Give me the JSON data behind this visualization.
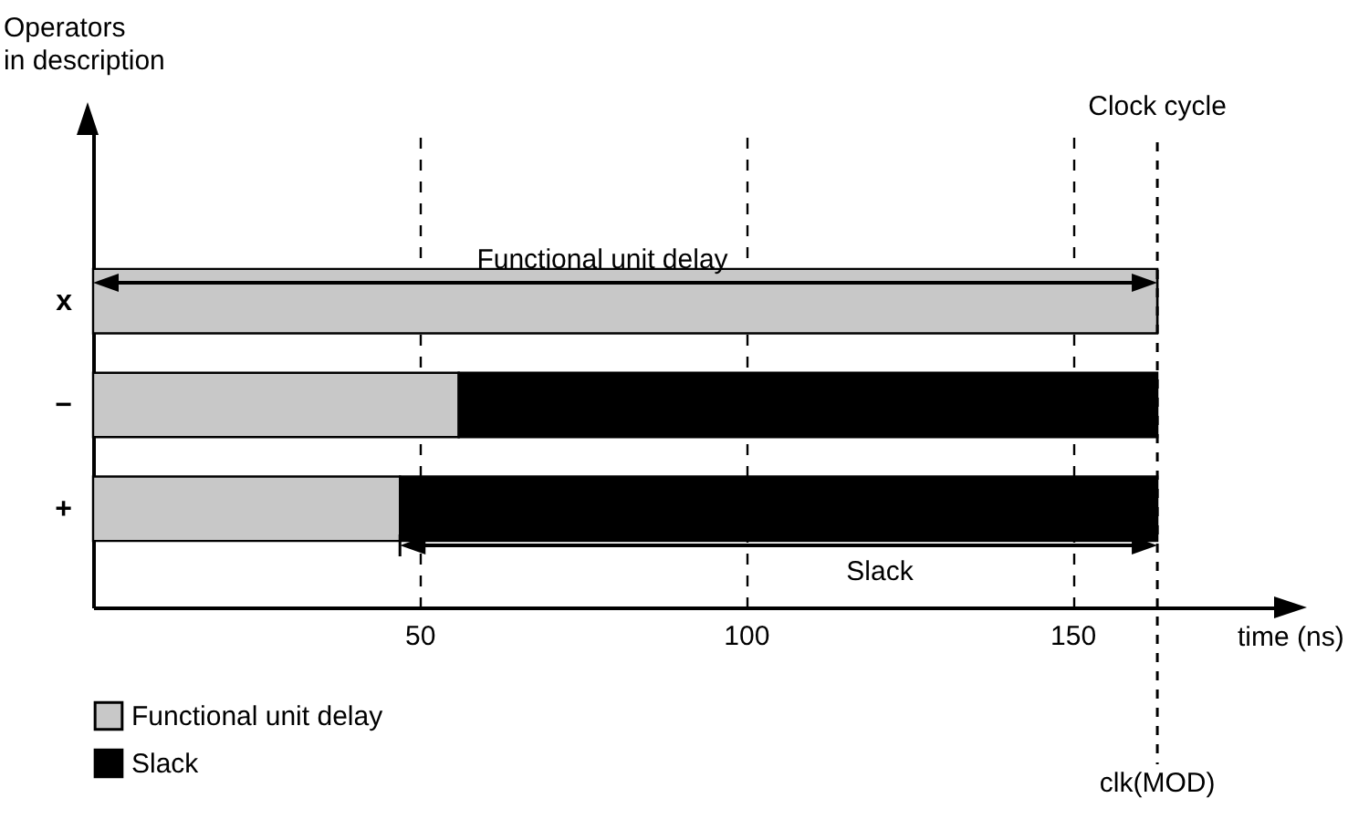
{
  "chart_data": {
    "type": "bar",
    "orientation": "horizontal",
    "stacked": true,
    "categories": [
      "x",
      "−",
      "+"
    ],
    "series": [
      {
        "name": "Functional unit delay",
        "color": "#c8c8c8",
        "values": [
          163,
          56,
          47
        ]
      },
      {
        "name": "Slack",
        "color": "#000000",
        "values": [
          0,
          107,
          116
        ]
      }
    ],
    "xlim": [
      0,
      182
    ],
    "xticks": [
      50,
      100,
      150
    ],
    "xlabel": "time (ns)",
    "grid": "x",
    "legend": "bottom",
    "ref_lines": [
      {
        "axis": "x",
        "value": 163,
        "label": "clk(MOD)",
        "line_style": "dashed",
        "color": "#000000"
      }
    ],
    "annotations": [
      "Clock cycle",
      "Functional unit delay",
      "Slack",
      "Operators\nin description"
    ]
  }
}
